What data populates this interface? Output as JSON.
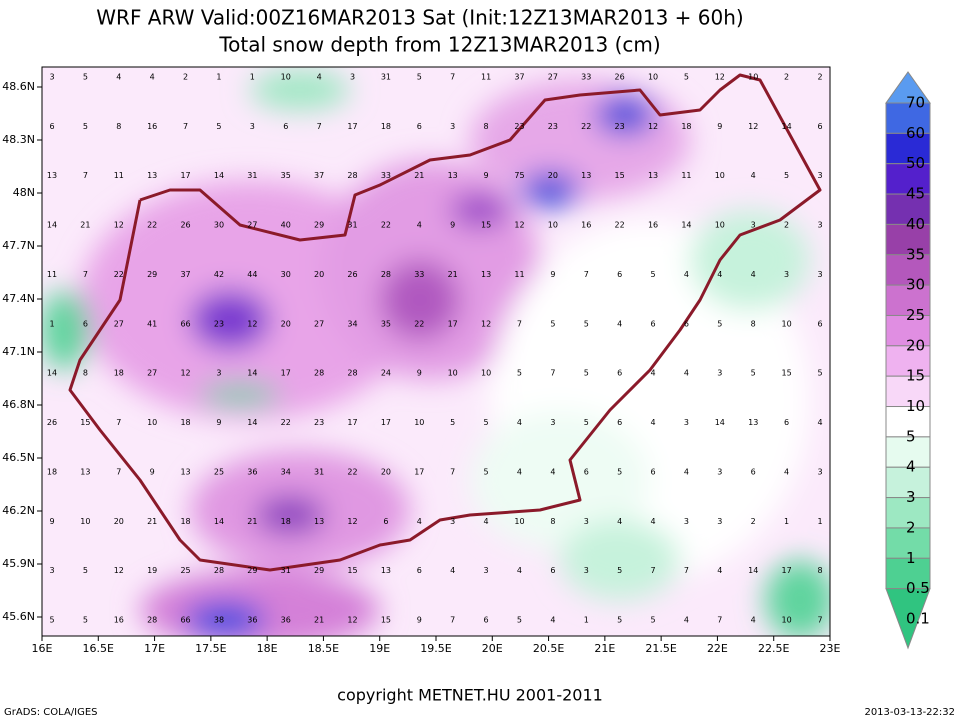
{
  "header": {
    "title": "WRF ARW Valid:00Z16MAR2013 Sat (Init:12Z13MAR2013 + 60h)",
    "subtitle": "Total snow depth from 12Z13MAR2013 (cm)"
  },
  "map": {
    "x_labels": [
      "16E",
      "16.5E",
      "17E",
      "17.5E",
      "18E",
      "18.5E",
      "19E",
      "19.5E",
      "20E",
      "20.5E",
      "21E",
      "21.5E",
      "22E",
      "22.5E",
      "23E"
    ],
    "y_labels": [
      "48.6N",
      "48.3N",
      "48N",
      "47.7N",
      "47.4N",
      "47.1N",
      "46.8N",
      "46.5N",
      "46.2N",
      "45.9N",
      "45.6N"
    ],
    "grid_values": [
      [
        3,
        5,
        4,
        4,
        2,
        1,
        1,
        10,
        4,
        3,
        31,
        5,
        7,
        11,
        37,
        27,
        33,
        26,
        10,
        5,
        12,
        10,
        2,
        2
      ],
      [
        6,
        5,
        8,
        16,
        7,
        5,
        3,
        6,
        7,
        17,
        18,
        6,
        3,
        8,
        23,
        23,
        22,
        23,
        12,
        18,
        9,
        12,
        14,
        6
      ],
      [
        13,
        7,
        11,
        13,
        17,
        14,
        31,
        35,
        37,
        28,
        33,
        21,
        13,
        9,
        75,
        20,
        13,
        15,
        13,
        11,
        10,
        4,
        5,
        3
      ],
      [
        14,
        21,
        12,
        22,
        26,
        30,
        27,
        40,
        29,
        31,
        22,
        4,
        9,
        15,
        12,
        10,
        16,
        22,
        16,
        14,
        10,
        3,
        2,
        3
      ],
      [
        11,
        7,
        22,
        29,
        37,
        42,
        44,
        30,
        20,
        26,
        28,
        33,
        21,
        13,
        11,
        9,
        7,
        6,
        5,
        4,
        4,
        4,
        3,
        3
      ],
      [
        1,
        6,
        27,
        41,
        66,
        23,
        12,
        20,
        27,
        34,
        35,
        22,
        17,
        12,
        7,
        5,
        5,
        4,
        6,
        6,
        5,
        8,
        10,
        6
      ],
      [
        14,
        8,
        18,
        27,
        12,
        3,
        14,
        17,
        28,
        28,
        24,
        9,
        10,
        10,
        5,
        7,
        5,
        6,
        4,
        4,
        3,
        5,
        15,
        5
      ],
      [
        26,
        15,
        7,
        10,
        18,
        9,
        14,
        22,
        23,
        17,
        17,
        10,
        5,
        5,
        4,
        3,
        5,
        6,
        4,
        3,
        14,
        13,
        6,
        4
      ],
      [
        18,
        13,
        7,
        9,
        13,
        25,
        36,
        34,
        31,
        22,
        20,
        17,
        7,
        5,
        4,
        4,
        6,
        5,
        6,
        4,
        3,
        6,
        4,
        3
      ],
      [
        9,
        10,
        20,
        21,
        18,
        14,
        21,
        18,
        13,
        12,
        6,
        4,
        3,
        4,
        10,
        8,
        3,
        4,
        4,
        3,
        3,
        2,
        1,
        1
      ],
      [
        3,
        5,
        12,
        19,
        25,
        28,
        29,
        31,
        29,
        15,
        13,
        6,
        4,
        3,
        4,
        6,
        3,
        5,
        7,
        7,
        4,
        14,
        17,
        8
      ],
      [
        5,
        5,
        16,
        28,
        66,
        38,
        36,
        36,
        21,
        12,
        15,
        9,
        7,
        6,
        5,
        4,
        1,
        5,
        5,
        4,
        7,
        4,
        10,
        7
      ]
    ]
  },
  "legend": {
    "levels": [
      70,
      60,
      50,
      45,
      40,
      35,
      30,
      25,
      20,
      15,
      10,
      5,
      4,
      3,
      2,
      1,
      0.5,
      0.1
    ],
    "colors": [
      "#5a9bf0",
      "#3f68e3",
      "#2a2ad6",
      "#5420cc",
      "#7530b0",
      "#9840a8",
      "#b458bc",
      "#cc72cf",
      "#e08ee2",
      "#efb2f0",
      "#f8d8f8",
      "#ffffff",
      "#e6fbef",
      "#c6f2dc",
      "#9de8c2",
      "#73dca8",
      "#4ed092",
      "#30c480"
    ]
  },
  "footer": {
    "copyright": "copyright METNET.HU 2001-2011",
    "software": "GrADS: COLA/IGES",
    "timestamp": "2013-03-13-22:32"
  }
}
